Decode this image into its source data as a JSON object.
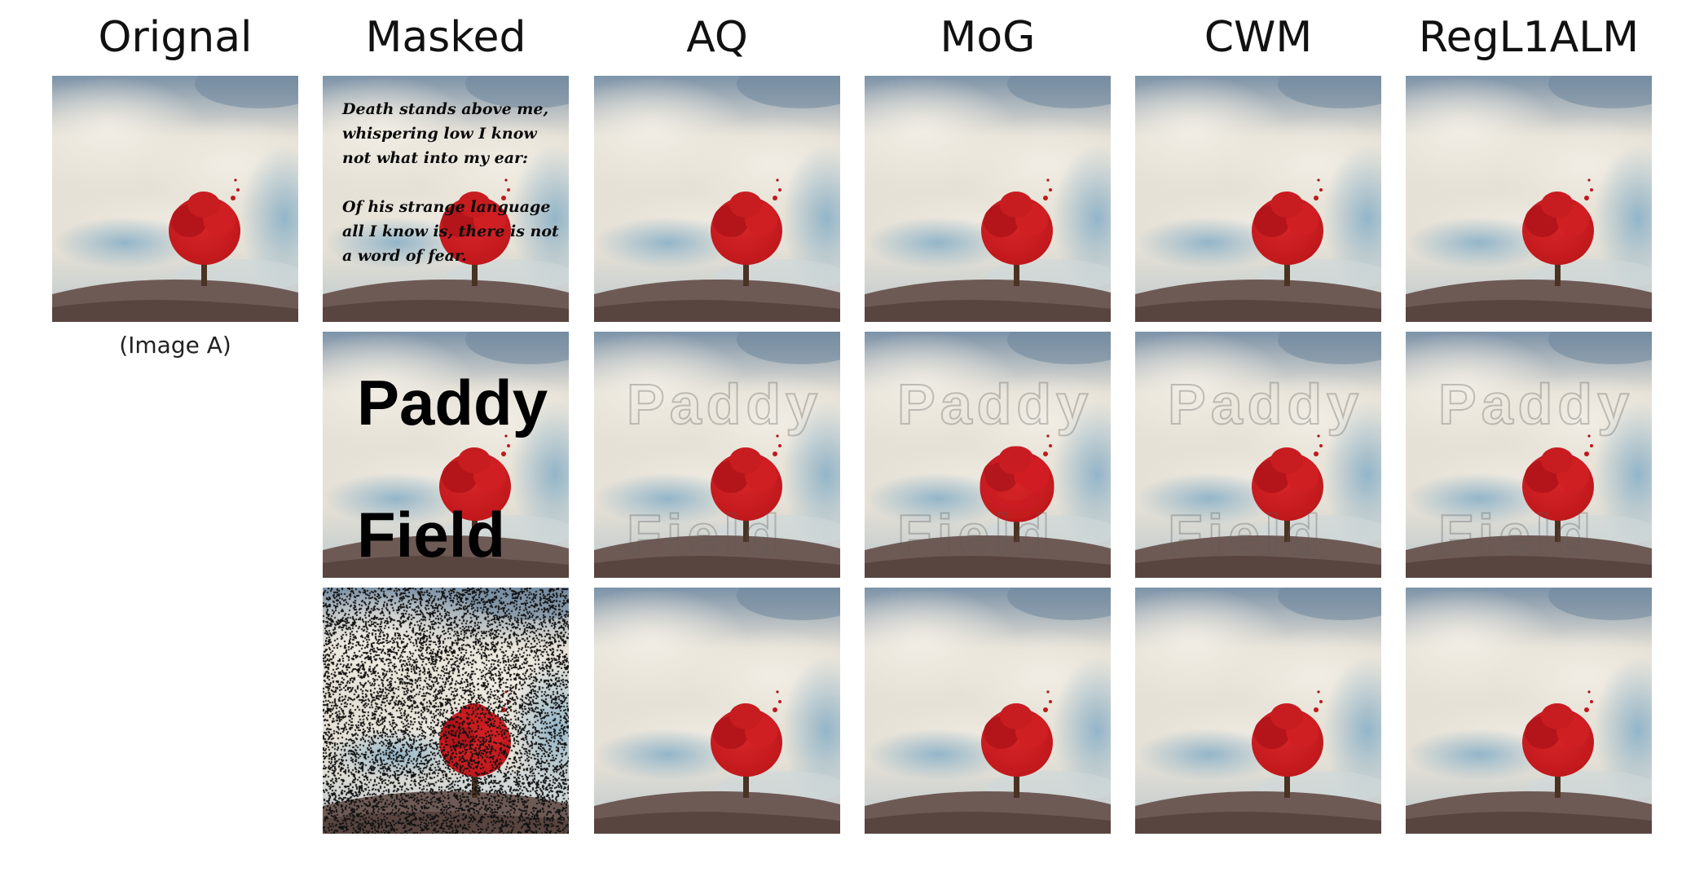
{
  "columns": [
    "Orignal",
    "Masked",
    "AQ",
    "MoG",
    "CWM",
    "RegL1ALM"
  ],
  "caption": "(Image A)",
  "masks": {
    "poem_lines": [
      "Death stands above me,",
      "whispering low I know",
      "not what into my ear:",
      "",
      "Of his strange language",
      "all I know is, there is not",
      "a word of fear."
    ],
    "word1": "Paddy",
    "word2": "Field"
  },
  "colors": {
    "sky_top": "#7d93a8",
    "sky_mid": "#e6e1d6",
    "cloud": "#f1ede4",
    "blue_patch": "#8fb3c8",
    "tree": "#c0181c",
    "trunk": "#4a3322",
    "ground": "#6e5a55"
  }
}
